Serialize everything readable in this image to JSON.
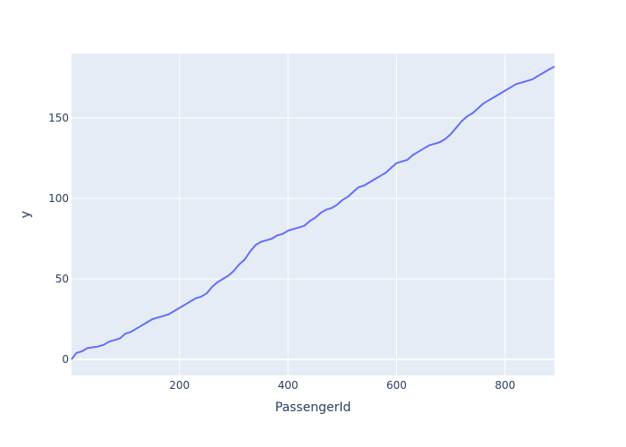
{
  "chart_data": {
    "type": "line",
    "title": "",
    "xlabel": "PassengerId",
    "ylabel": "y",
    "xlim": [
      1,
      891
    ],
    "ylim": [
      -10,
      190
    ],
    "x_ticks": [
      200,
      400,
      600,
      800
    ],
    "y_ticks": [
      0,
      50,
      100,
      150
    ],
    "grid": true,
    "legend": "none",
    "colors": {
      "plot_bg": "#E5ECF6",
      "grid": "#FFFFFF",
      "line": "#636EFA",
      "text": "#2A3F5F"
    },
    "series": [
      {
        "x": [
          1,
          10,
          20,
          30,
          40,
          50,
          60,
          70,
          80,
          90,
          100,
          110,
          120,
          130,
          140,
          150,
          160,
          170,
          180,
          190,
          200,
          210,
          220,
          230,
          240,
          250,
          260,
          270,
          280,
          290,
          300,
          310,
          320,
          330,
          340,
          350,
          360,
          370,
          380,
          390,
          400,
          410,
          420,
          430,
          440,
          450,
          460,
          470,
          480,
          490,
          500,
          510,
          520,
          530,
          540,
          550,
          560,
          570,
          580,
          590,
          600,
          610,
          620,
          630,
          640,
          650,
          660,
          670,
          680,
          690,
          700,
          710,
          720,
          730,
          740,
          750,
          760,
          770,
          780,
          790,
          800,
          810,
          820,
          830,
          840,
          850,
          860,
          870,
          880,
          891
        ],
        "y": [
          0,
          4,
          5,
          7,
          7.5,
          8,
          9,
          11,
          12,
          13,
          16,
          17,
          19,
          21,
          23,
          25,
          26,
          27,
          28,
          30,
          32,
          34,
          36,
          38,
          39,
          41,
          45,
          48,
          50,
          52,
          55,
          59,
          62,
          67,
          71,
          73,
          74,
          75,
          77,
          78,
          80,
          81,
          82,
          83,
          86,
          88,
          91,
          93,
          94,
          96,
          99,
          101,
          104,
          107,
          108,
          110,
          112,
          114,
          116,
          119,
          122,
          123,
          124,
          127,
          129,
          131,
          133,
          134,
          135,
          137,
          140,
          144,
          148,
          151,
          153,
          156,
          159,
          161,
          163,
          165,
          167,
          169,
          171,
          172,
          173,
          174,
          176,
          178,
          180,
          182
        ]
      }
    ]
  }
}
